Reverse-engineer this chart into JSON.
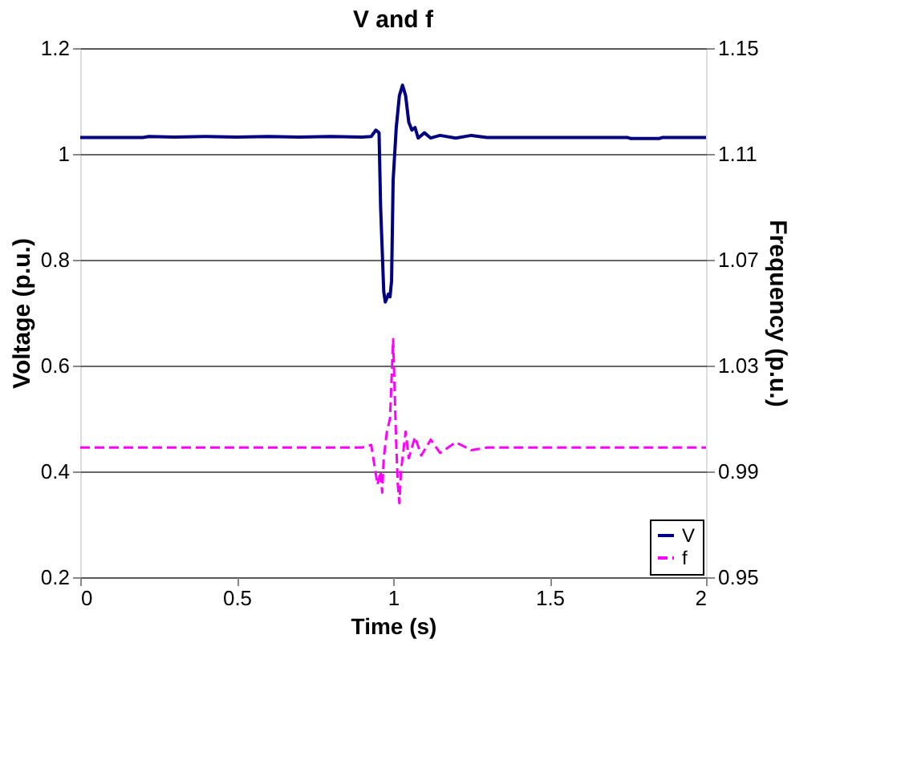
{
  "chart_data": {
    "type": "line",
    "title": "V and f",
    "xlabel": "Time (s)",
    "ylabel": "Voltage (p.u.)",
    "y2label": "Frequency (p.u.)",
    "xlim": [
      0,
      2
    ],
    "xticks": [
      0,
      0.5,
      1,
      1.5,
      2
    ],
    "ylim": [
      0.2,
      1.2
    ],
    "yticks": [
      0.2,
      0.4,
      0.6,
      0.8,
      1,
      1.2
    ],
    "y2lim": [
      0.95,
      1.15
    ],
    "y2ticks": [
      0.95,
      0.99,
      1.03,
      1.07,
      1.11,
      1.15
    ],
    "grid": "y",
    "legend": "bottom right",
    "marker": "none",
    "series": [
      {
        "name": "V",
        "color": "#000080",
        "line_style": "solid",
        "x": [
          0,
          0.2,
          0.22,
          0.3,
          0.4,
          0.5,
          0.6,
          0.7,
          0.8,
          0.9,
          0.93,
          0.945,
          0.955,
          0.96,
          0.97,
          0.975,
          0.985,
          0.99,
          0.995,
          1.0,
          1.01,
          1.02,
          1.03,
          1.04,
          1.05,
          1.06,
          1.07,
          1.08,
          1.1,
          1.12,
          1.15,
          1.2,
          1.25,
          1.3,
          1.5,
          1.75,
          1.76,
          1.85,
          1.86,
          2.0
        ],
        "values": [
          1.031,
          1.031,
          1.033,
          1.032,
          1.033,
          1.032,
          1.033,
          1.032,
          1.033,
          1.032,
          1.033,
          1.045,
          1.04,
          0.9,
          0.74,
          0.72,
          0.735,
          0.73,
          0.76,
          0.95,
          1.05,
          1.11,
          1.13,
          1.11,
          1.06,
          1.045,
          1.05,
          1.03,
          1.04,
          1.03,
          1.035,
          1.03,
          1.035,
          1.031,
          1.031,
          1.031,
          1.029,
          1.029,
          1.031,
          1.031
        ]
      },
      {
        "name": "f",
        "color": "#ff00ff",
        "line_style": "dashed",
        "axis": "y2",
        "x": [
          0,
          0.9,
          0.93,
          0.95,
          0.96,
          0.965,
          0.97,
          0.98,
          0.99,
          1.0,
          1.005,
          1.01,
          1.015,
          1.02,
          1.025,
          1.04,
          1.05,
          1.07,
          1.09,
          1.12,
          1.15,
          1.2,
          1.25,
          1.3,
          2.0
        ],
        "values": [
          0.999,
          0.999,
          1.0,
          0.985,
          0.99,
          0.982,
          0.995,
          1.005,
          1.01,
          1.04,
          1.02,
          1.0,
          0.985,
          0.978,
          0.99,
          1.005,
          0.995,
          1.003,
          0.996,
          1.002,
          0.997,
          1.001,
          0.998,
          0.999,
          0.999
        ]
      }
    ]
  }
}
